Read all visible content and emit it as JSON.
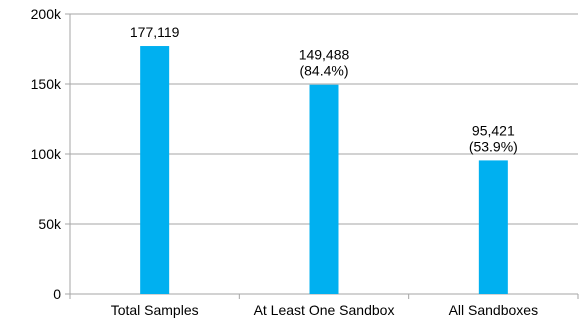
{
  "chart_data": {
    "type": "bar",
    "title": "",
    "xlabel": "",
    "ylabel": "",
    "categories": [
      "Total Samples",
      "At Least One Sandbox",
      "All Sandboxes"
    ],
    "values": [
      177119,
      149488,
      95421
    ],
    "data_labels": [
      [
        "177,119"
      ],
      [
        "149,488",
        "(84.4%)"
      ],
      [
        "95,421",
        "(53.9%)"
      ]
    ],
    "ylim": [
      0,
      200000
    ],
    "y_ticks": [
      0,
      50000,
      100000,
      150000,
      200000
    ],
    "y_tick_labels": [
      "0",
      "50k",
      "100k",
      "150k",
      "200k"
    ],
    "grid": "horizontal",
    "legend": "none",
    "bar_color": "#00B0F0",
    "grid_color": "#A6A6A6"
  }
}
